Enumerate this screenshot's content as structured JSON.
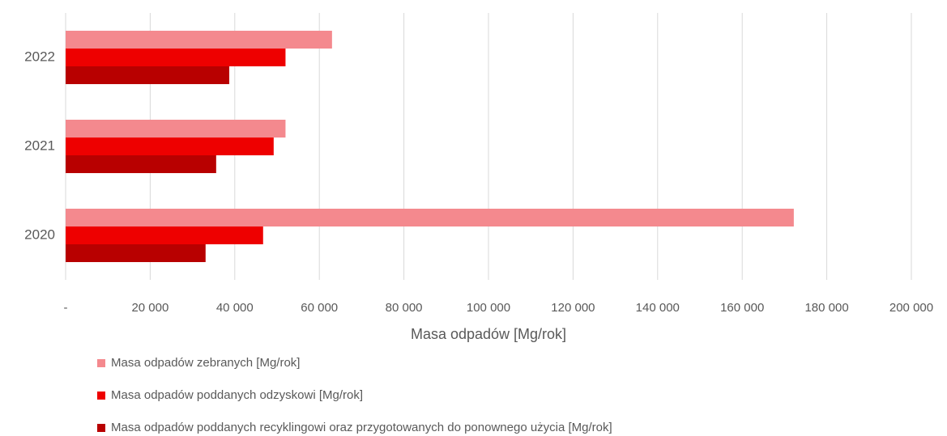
{
  "chart_data": {
    "type": "hbar",
    "x_label": "Masa odpadów [Mg/rok]",
    "categories": [
      "2020",
      "2021",
      "2022"
    ],
    "series": [
      {
        "name": "Masa odpadów zebranych [Mg/rok]",
        "color": "#f4898e",
        "values": [
          172200,
          52000,
          63000
        ]
      },
      {
        "name": "Masa odpadów poddanych odzyskowi [Mg/rok]",
        "color": "#ee0000",
        "values": [
          46700,
          49200,
          52000
        ]
      },
      {
        "name": "Masa odpadów poddanych recyklingowi oraz przygotowanych do ponownego użycia [Mg/rok]",
        "color": "#b80000",
        "values": [
          33100,
          35600,
          38700
        ]
      }
    ],
    "xlim": [
      0,
      200000
    ],
    "xticks": [
      {
        "value": 0,
        "label": "-"
      },
      {
        "value": 20000,
        "label": "20 000"
      },
      {
        "value": 40000,
        "label": "40 000"
      },
      {
        "value": 60000,
        "label": "60 000"
      },
      {
        "value": 80000,
        "label": "80 000"
      },
      {
        "value": 100000,
        "label": "100 000"
      },
      {
        "value": 120000,
        "label": "120 000"
      },
      {
        "value": 140000,
        "label": "140 000"
      },
      {
        "value": 160000,
        "label": "160 000"
      },
      {
        "value": 180000,
        "label": "180 000"
      },
      {
        "value": 200000,
        "label": "200 000"
      }
    ],
    "grid": true,
    "legend": "bottom"
  }
}
